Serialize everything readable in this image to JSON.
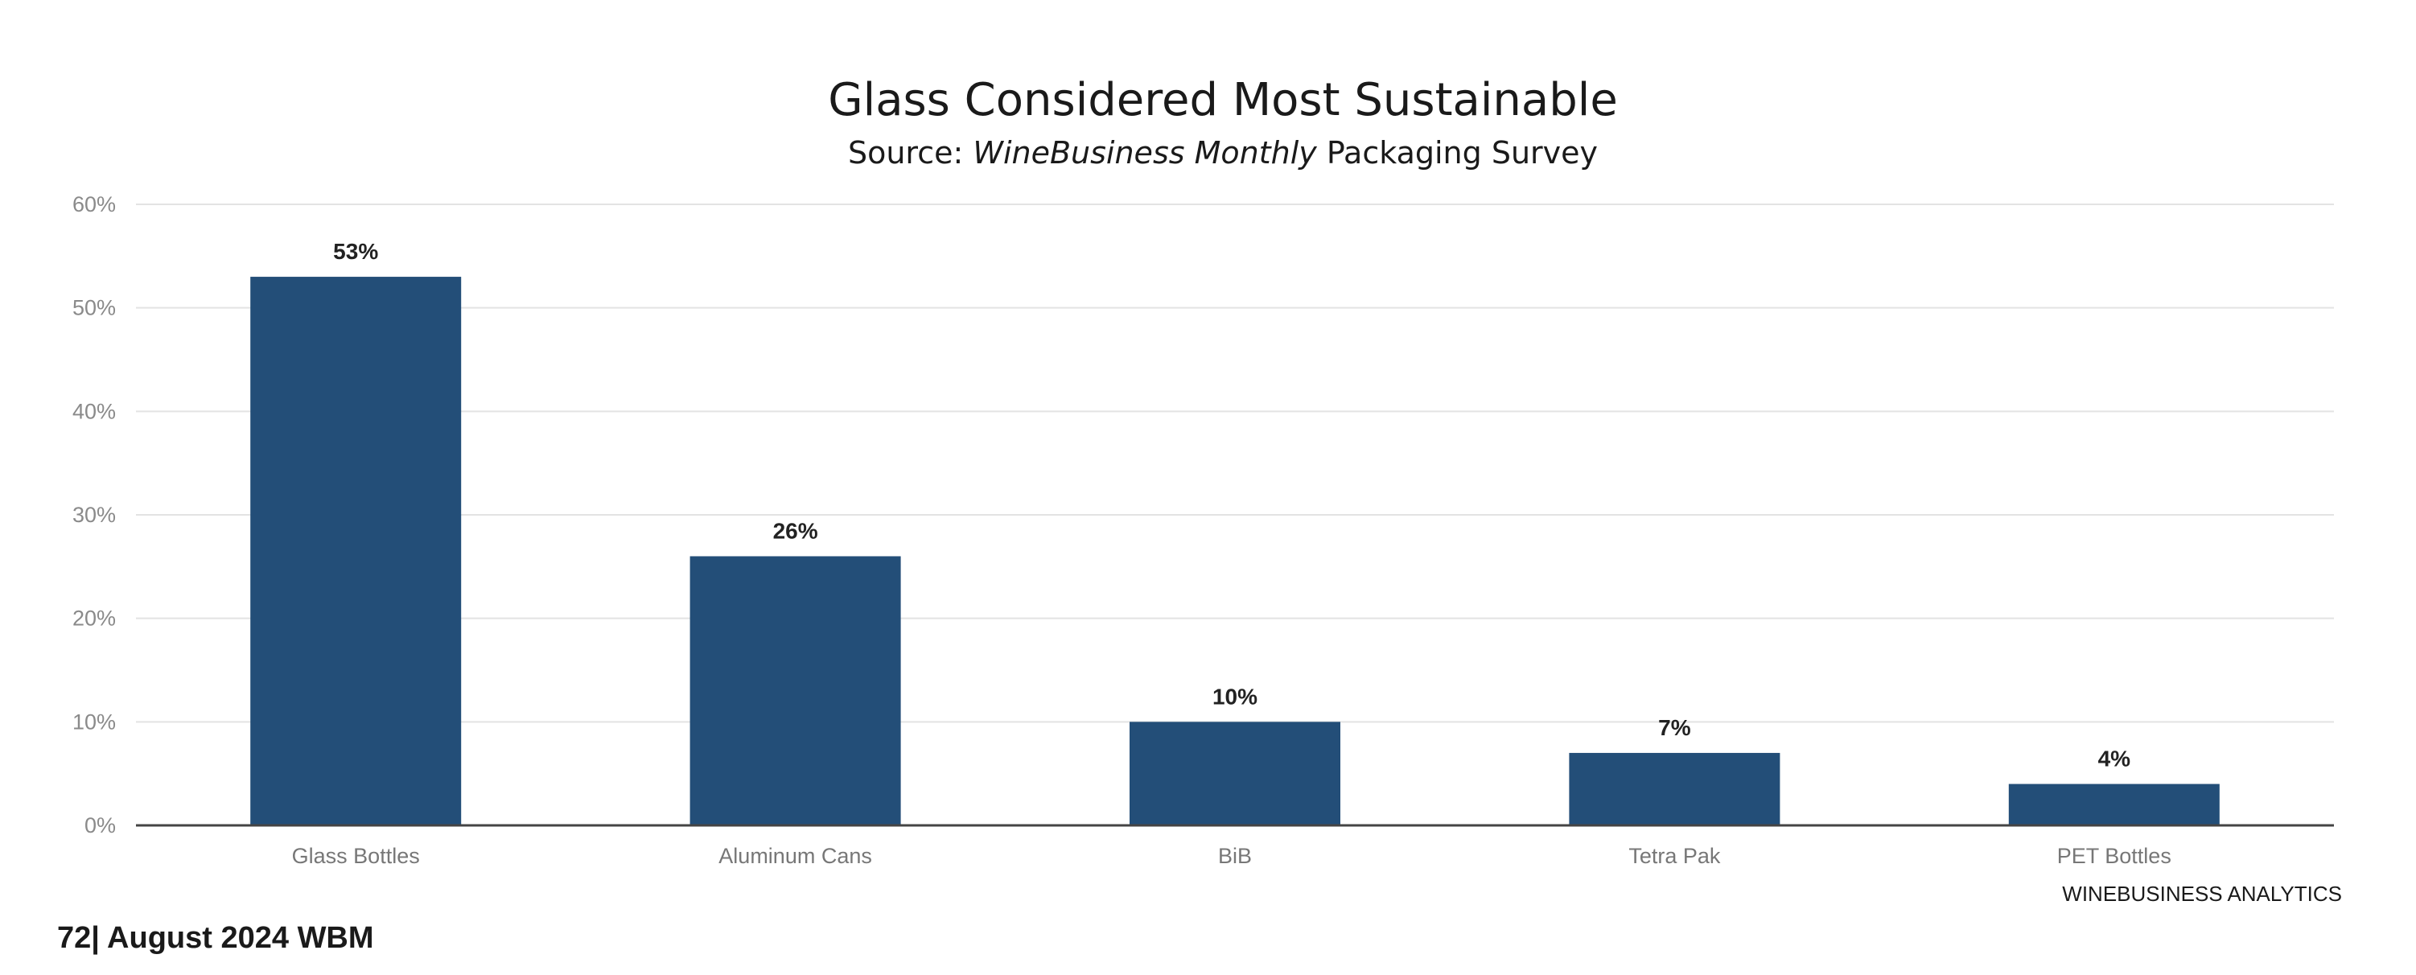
{
  "chart_data": {
    "type": "bar",
    "title": "Glass Considered Most Sustainable",
    "subtitle_prefix": "Source: ",
    "subtitle_italic": "WineBusiness Monthly",
    "subtitle_suffix": " Packaging Survey",
    "categories": [
      "Glass Bottles",
      "Aluminum Cans",
      "BiB",
      "Tetra Pak",
      "PET Bottles"
    ],
    "values": [
      53,
      26,
      10,
      7,
      4
    ],
    "data_labels": [
      "53%",
      "26%",
      "10%",
      "7%",
      "4%"
    ],
    "ylim": [
      0,
      60
    ],
    "yticks": [
      0,
      10,
      20,
      30,
      40,
      50,
      60
    ],
    "ytick_labels": [
      "0%",
      "10%",
      "20%",
      "30%",
      "40%",
      "50%",
      "60%"
    ],
    "grid": true,
    "bar_color": "#234e78",
    "xlabel": "",
    "ylabel": ""
  },
  "footer": {
    "page": "72| August 2024 WBM"
  },
  "credit": "WINEBUSINESS ANALYTICS"
}
